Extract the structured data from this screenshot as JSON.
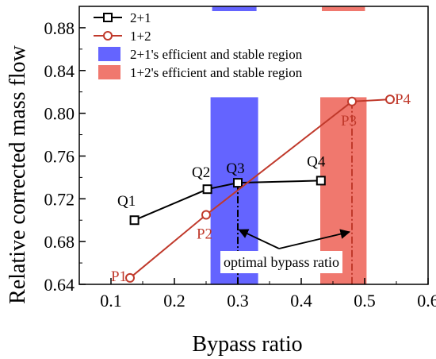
{
  "chart_data": {
    "type": "line",
    "xlabel": "Bypass ratio",
    "ylabel": "Relative corrected mass flow",
    "xlim": [
      0.05,
      0.6
    ],
    "ylim": [
      0.64,
      0.9
    ],
    "xticks": [
      "0.1",
      "0.2",
      "0.3",
      "0.4",
      "0.5",
      "0.6"
    ],
    "yticks": [
      "0.64",
      "0.68",
      "0.72",
      "0.76",
      "0.80",
      "0.84",
      "0.88"
    ],
    "series": [
      {
        "name": "2+1",
        "color": "#000000",
        "marker": "square",
        "points": [
          {
            "x": 0.137,
            "y": 0.7,
            "label": "Q1"
          },
          {
            "x": 0.252,
            "y": 0.729,
            "label": "Q2"
          },
          {
            "x": 0.3,
            "y": 0.735,
            "label": "Q3"
          },
          {
            "x": 0.431,
            "y": 0.737,
            "label": "Q4"
          }
        ]
      },
      {
        "name": "1+2",
        "color": "#c0392b",
        "marker": "circle",
        "points": [
          {
            "x": 0.13,
            "y": 0.646,
            "label": "P1"
          },
          {
            "x": 0.25,
            "y": 0.705,
            "label": "P2"
          },
          {
            "x": 0.48,
            "y": 0.811,
            "label": "P3"
          },
          {
            "x": 0.54,
            "y": 0.813,
            "label": "P4"
          }
        ]
      }
    ],
    "regions": [
      {
        "name": "2+1's efficient and stable region",
        "color": "#6464ff",
        "x": [
          0.257,
          0.332
        ],
        "y": [
          0.64,
          0.815
        ]
      },
      {
        "name": "1+2's efficient and stable region",
        "color": "#f0786e",
        "x": [
          0.43,
          0.503
        ],
        "y": [
          0.64,
          0.815
        ]
      }
    ],
    "optimal_lines": [
      {
        "x": 0.3,
        "y_top": 0.735,
        "color": "#000000"
      },
      {
        "x": 0.48,
        "y_top": 0.811,
        "color": "#c0392b"
      }
    ],
    "annotation": {
      "text": "optimal bypass ratio"
    },
    "legend_position": "top-left",
    "grid": false
  }
}
